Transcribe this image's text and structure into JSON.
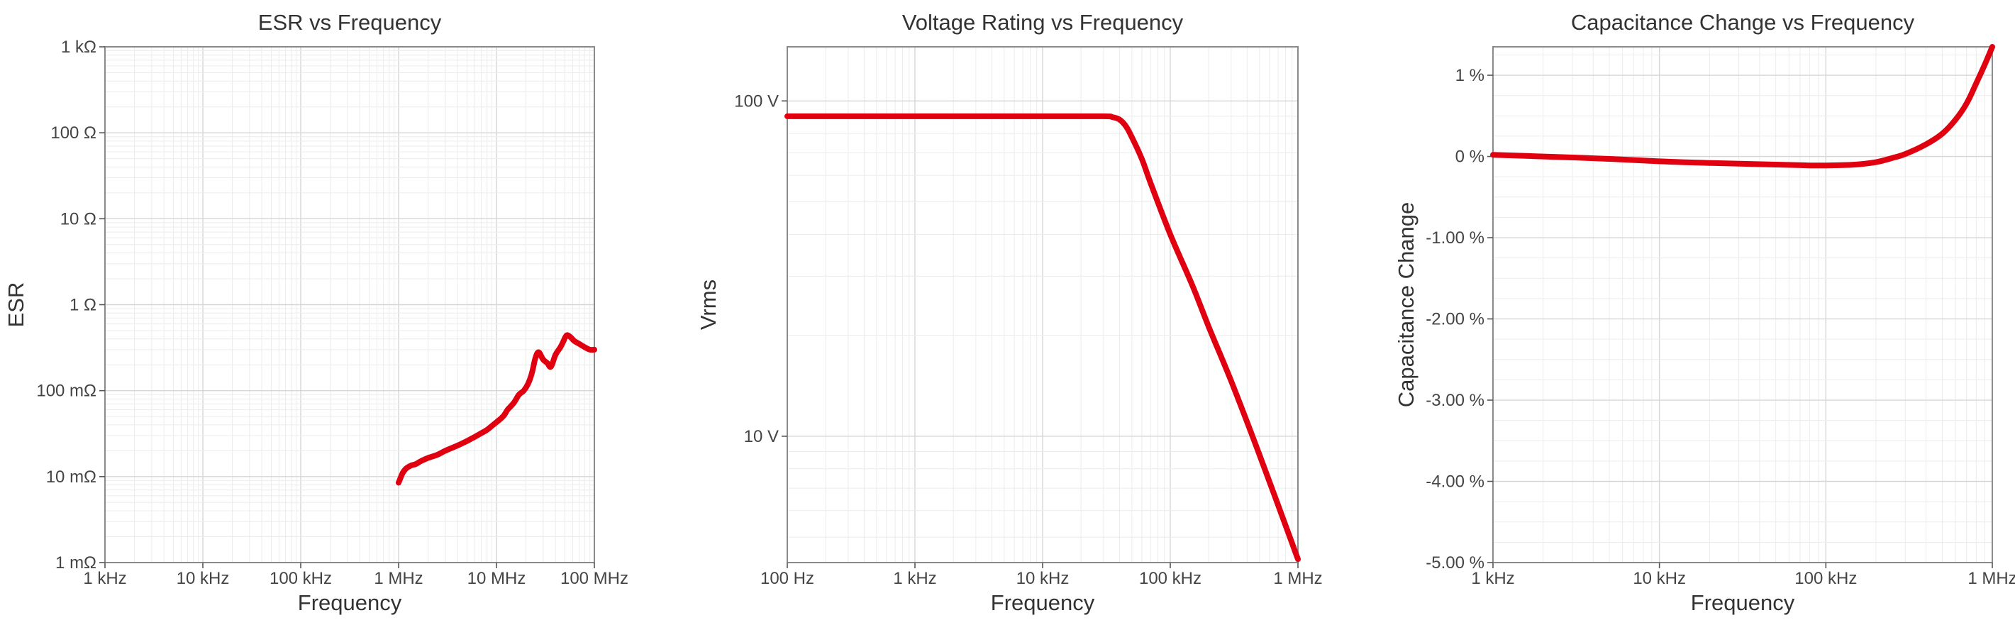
{
  "colors": {
    "series": "#e0000f",
    "grid_major": "#d6d6d6",
    "grid_minor": "#ececec",
    "frame": "#8a8a8a"
  },
  "chart_data": [
    {
      "type": "line",
      "title": "ESR vs Frequency",
      "xlabel": "Frequency",
      "ylabel": "ESR",
      "x_scale": "log",
      "y_scale": "log",
      "xlim": [
        1000,
        100000000
      ],
      "ylim": [
        0.001,
        1000
      ],
      "x_ticks": [
        {
          "value": 1000,
          "label": "1 kHz"
        },
        {
          "value": 10000,
          "label": "10 kHz"
        },
        {
          "value": 100000,
          "label": "100 kHz"
        },
        {
          "value": 1000000,
          "label": "1 MHz"
        },
        {
          "value": 10000000,
          "label": "10 MHz"
        },
        {
          "value": 100000000,
          "label": "100 MHz"
        }
      ],
      "y_ticks": [
        {
          "value": 0.001,
          "label": "1 mΩ"
        },
        {
          "value": 0.01,
          "label": "10 mΩ"
        },
        {
          "value": 0.1,
          "label": "100 mΩ"
        },
        {
          "value": 1,
          "label": "1 Ω"
        },
        {
          "value": 10,
          "label": "10 Ω"
        },
        {
          "value": 100,
          "label": "100 Ω"
        },
        {
          "value": 1000,
          "label": "1 kΩ"
        }
      ],
      "grid": true,
      "series": [
        {
          "color": "#e0000f",
          "x": [
            1000000,
            1100000,
            1200000,
            1350000,
            1500000,
            1700000,
            2000000,
            2500000,
            3000000,
            4000000,
            5000000,
            6000000,
            7000000,
            8000000,
            9000000,
            10000000,
            11000000,
            12000000,
            13000000,
            15000000,
            17000000,
            19000000,
            21000000,
            23000000,
            25000000,
            27000000,
            30000000,
            33000000,
            36000000,
            40000000,
            45000000,
            48000000,
            52000000,
            57000000,
            62000000,
            70000000,
            80000000,
            90000000,
            100000000
          ],
          "y": [
            0.0085,
            0.011,
            0.0125,
            0.0135,
            0.014,
            0.0152,
            0.0165,
            0.018,
            0.02,
            0.023,
            0.026,
            0.029,
            0.032,
            0.035,
            0.039,
            0.043,
            0.047,
            0.052,
            0.06,
            0.072,
            0.09,
            0.1,
            0.12,
            0.16,
            0.24,
            0.28,
            0.23,
            0.21,
            0.19,
            0.26,
            0.32,
            0.37,
            0.44,
            0.42,
            0.38,
            0.35,
            0.32,
            0.3,
            0.3
          ]
        }
      ]
    },
    {
      "type": "line",
      "title": "Voltage Rating vs Frequency",
      "xlabel": "Frequency",
      "ylabel": "Vrms",
      "x_scale": "log",
      "y_scale": "log",
      "xlim": [
        100,
        1000000
      ],
      "ylim": [
        4.2,
        145
      ],
      "x_ticks": [
        {
          "value": 100,
          "label": "100 Hz"
        },
        {
          "value": 1000,
          "label": "1 kHz"
        },
        {
          "value": 10000,
          "label": "10 kHz"
        },
        {
          "value": 100000,
          "label": "100 kHz"
        },
        {
          "value": 1000000,
          "label": "1 MHz"
        }
      ],
      "y_ticks": [
        {
          "value": 10,
          "label": "10 V"
        },
        {
          "value": 100,
          "label": "100 V"
        }
      ],
      "grid": true,
      "series": [
        {
          "color": "#e0000f",
          "x": [
            100,
            1000,
            10000,
            30000,
            35000,
            40000,
            45000,
            50000,
            60000,
            70000,
            100000,
            150000,
            200000,
            300000,
            500000,
            1000000
          ],
          "y": [
            90,
            90,
            90,
            90,
            89.5,
            88,
            84,
            78,
            67,
            57,
            40,
            28,
            21.2,
            14.6,
            8.8,
            4.3
          ]
        }
      ]
    },
    {
      "type": "line",
      "title": "Capacitance Change vs Frequency",
      "xlabel": "Frequency",
      "ylabel": "Capacitance Change",
      "x_scale": "log",
      "y_scale": "linear",
      "xlim": [
        1000,
        1000000
      ],
      "ylim": [
        -5.0,
        1.35
      ],
      "x_ticks": [
        {
          "value": 1000,
          "label": "1 kHz"
        },
        {
          "value": 10000,
          "label": "10 kHz"
        },
        {
          "value": 100000,
          "label": "100 kHz"
        },
        {
          "value": 1000000,
          "label": "1 MHz"
        }
      ],
      "y_ticks": [
        {
          "value": -5,
          "label": "-5.00 %"
        },
        {
          "value": -4,
          "label": "-4.00 %"
        },
        {
          "value": -3,
          "label": "-3.00 %"
        },
        {
          "value": -2,
          "label": "-2.00 %"
        },
        {
          "value": -1,
          "label": "-1.00 %"
        },
        {
          "value": 0,
          "label": "0 %"
        },
        {
          "value": 1,
          "label": "1 %"
        }
      ],
      "grid": true,
      "series": [
        {
          "color": "#e0000f",
          "x": [
            1000,
            2000,
            5000,
            10000,
            20000,
            50000,
            80000,
            100000,
            150000,
            200000,
            250000,
            300000,
            400000,
            500000,
            600000,
            700000,
            800000,
            900000,
            1000000
          ],
          "y": [
            0.02,
            0.0,
            -0.03,
            -0.06,
            -0.08,
            -0.1,
            -0.11,
            -0.11,
            -0.1,
            -0.07,
            -0.02,
            0.03,
            0.15,
            0.28,
            0.45,
            0.65,
            0.9,
            1.13,
            1.35
          ]
        }
      ]
    }
  ]
}
